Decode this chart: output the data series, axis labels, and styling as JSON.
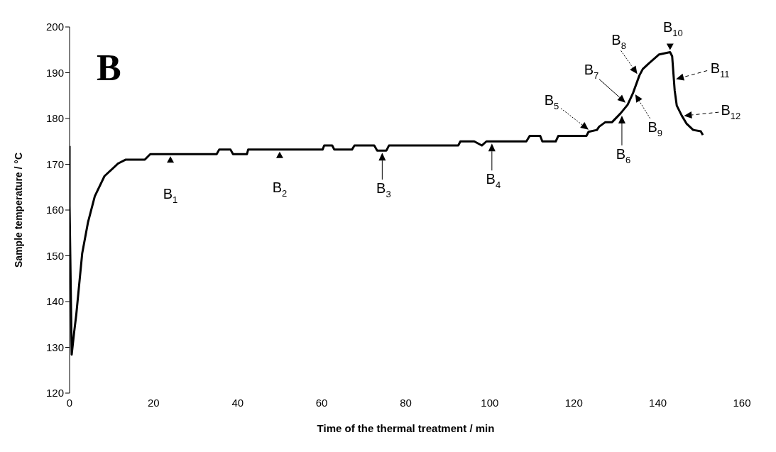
{
  "chart_data": {
    "type": "line",
    "title": "B",
    "xlabel": "Time of the thermal treatment / min",
    "ylabel": "Sample temperature / °C",
    "xlim": [
      0,
      160
    ],
    "xticks": [
      0,
      20,
      40,
      60,
      80,
      100,
      120,
      140,
      160
    ],
    "ylim": [
      120,
      200
    ],
    "yticks": [
      120,
      130,
      140,
      150,
      160,
      170,
      180,
      190,
      200
    ],
    "marker": "none",
    "line_style": "solid",
    "series": [
      {
        "color": "#000000",
        "x": [
          0,
          0,
          0.5,
          1.1,
          1.6,
          3.0,
          4.4,
          6.0,
          8.3,
          11.6,
          13.3,
          17.9,
          19.2,
          28.4,
          35,
          35.6,
          38.3,
          38.9,
          42.2,
          42.5,
          60.2,
          60.6,
          62.5,
          63,
          67.2,
          67.8,
          72.5,
          73.2,
          75.4,
          76,
          86,
          92.5,
          93,
          96.3,
          98.1,
          99.2,
          108.7,
          109.5,
          112,
          112.5,
          115.7,
          116.3,
          123,
          123.5,
          125.5,
          126,
          127.5,
          129.1,
          131.1,
          132.8,
          134.1,
          135.6,
          136.4,
          137.8,
          140.3,
          142.9,
          143.4,
          144,
          144.5,
          145.7,
          146.8,
          148.4,
          150.2,
          150.7
        ],
        "values": [
          174,
          161,
          128.4,
          133.4,
          137.2,
          150.5,
          157.4,
          163,
          167.4,
          170.2,
          171,
          171,
          172.2,
          172.2,
          172.2,
          173.2,
          173.2,
          172.2,
          172.2,
          173.2,
          173.2,
          174.1,
          174.1,
          173.2,
          173.2,
          174.1,
          174.1,
          173,
          173,
          174.1,
          174.1,
          174.1,
          175,
          175,
          174.1,
          175,
          175,
          176.2,
          176.2,
          175,
          175,
          176.2,
          176.2,
          177.1,
          177.5,
          178.2,
          179.2,
          179.2,
          181.1,
          183,
          185.6,
          189.4,
          190.8,
          192,
          194,
          194.5,
          193.6,
          186.1,
          182.8,
          180.6,
          178.9,
          177.5,
          177.2,
          176.4
        ]
      }
    ],
    "annotations": [
      {
        "text": "B$_{1}$",
        "x": 24,
        "y": 172.2
      },
      {
        "text": "B$_{2}$",
        "x": 50,
        "y": 173.2
      },
      {
        "text": "B$_{3}$",
        "x": 74.4,
        "y": 173
      },
      {
        "text": "B$_{4}$",
        "x": 100.5,
        "y": 175
      },
      {
        "text": "B$_{5}$",
        "x": 123.5,
        "y": 177.1
      },
      {
        "text": "B$_{6}$",
        "x": 131.1,
        "y": 181.1
      },
      {
        "text": "B$_{7}$",
        "x": 132.8,
        "y": 183
      },
      {
        "text": "B$_{8}$",
        "x": 135.6,
        "y": 189.4
      },
      {
        "text": "B$_{9}$",
        "x": 134.1,
        "y": 185.6
      },
      {
        "text": "B$_{10}$",
        "x": 142.9,
        "y": 194.5
      },
      {
        "text": "B$_{11}$",
        "x": 143.8,
        "y": 188.6
      },
      {
        "text": "B$_{12}$",
        "x": 145.7,
        "y": 180.6
      }
    ]
  }
}
